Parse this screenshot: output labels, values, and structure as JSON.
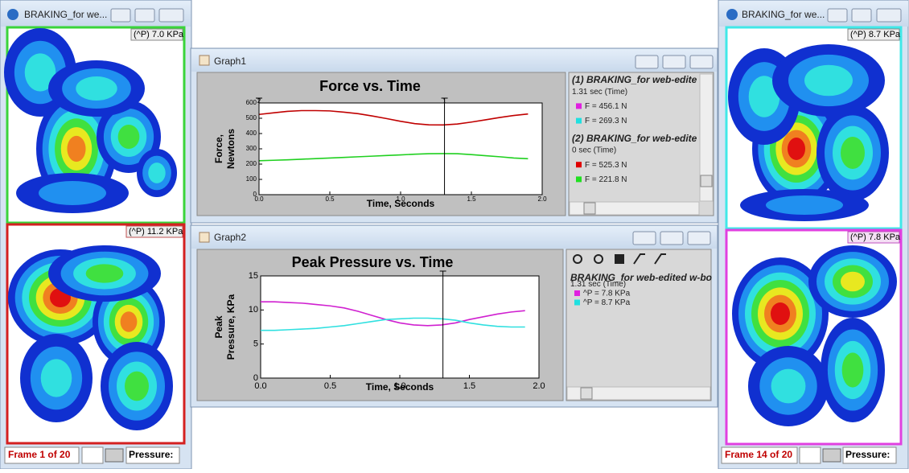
{
  "left_window": {
    "title": "BRAKING_for we...",
    "top_label": "(^P) 7.0 KPa",
    "bottom_label": "(^P) 11.2 KPa",
    "frame": "Frame 1 of 20",
    "pressure": "Pressure:"
  },
  "right_window": {
    "title": "BRAKING_for we...",
    "top_label": "(^P) 8.7 KPa",
    "bottom_label": "(^P) 7.8 KPa",
    "frame": "Frame 14 of 20",
    "pressure": "Pressure:"
  },
  "graph1_window": {
    "title": "Graph1",
    "readout": [
      {
        "text": "(1) BRAKING_for web-edite",
        "style": "head"
      },
      {
        "text": "1.31 sec (Time)",
        "style": "plain"
      },
      {
        "text": "F = 456.1 N",
        "style": "plain",
        "color": "#e020e0"
      },
      {
        "text": "F = 269.3 N",
        "style": "plain",
        "color": "#20e0e0"
      },
      {
        "text": "(2) BRAKING_for web-edite",
        "style": "head"
      },
      {
        "text": "0 sec (Time)",
        "style": "plain"
      },
      {
        "text": "F = 525.3 N",
        "style": "plain",
        "color": "#e00000"
      },
      {
        "text": "F = 221.8 N",
        "style": "plain",
        "color": "#20e020"
      }
    ]
  },
  "graph2_window": {
    "title": "Graph2",
    "readout": [
      {
        "text": "BRAKING_for web-edited w-bo",
        "style": "head"
      },
      {
        "text": "1.31 sec (Time)",
        "style": "plain"
      },
      {
        "text": "^P = 7.8 KPa",
        "style": "plain",
        "color": "#e020e0"
      },
      {
        "text": "^P = 8.7 KPa",
        "style": "plain",
        "color": "#20e0e0"
      }
    ]
  },
  "chart_data": [
    {
      "type": "line",
      "title": "Force vs. Time",
      "xlabel": "Time, Seconds",
      "ylabel": [
        "Force,",
        "Newtons"
      ],
      "x": [
        0,
        0.1,
        0.2,
        0.3,
        0.4,
        0.5,
        0.6,
        0.7,
        0.8,
        0.9,
        1.0,
        1.1,
        1.2,
        1.3,
        1.4,
        1.5,
        1.6,
        1.7,
        1.8,
        1.9
      ],
      "series": [
        {
          "color": "#c00000",
          "values": [
            525,
            535,
            545,
            550,
            550,
            548,
            540,
            530,
            515,
            498,
            480,
            465,
            457,
            456,
            462,
            475,
            490,
            505,
            518,
            528
          ]
        },
        {
          "color": "#20d020",
          "values": [
            222,
            225,
            228,
            232,
            236,
            240,
            244,
            248,
            252,
            256,
            260,
            265,
            268,
            269,
            268,
            262,
            255,
            248,
            240,
            235
          ]
        }
      ],
      "cursors": [
        {
          "x": 1.31,
          "label": "1"
        },
        {
          "x": 0,
          "label": "2"
        }
      ],
      "xlim": [
        0,
        2
      ],
      "ylim": [
        0,
        600
      ],
      "xticks": [
        {
          "value": 0,
          "label": "0.0"
        },
        {
          "value": 0.5,
          "label": "0.5"
        },
        {
          "value": 1,
          "label": "1.0"
        },
        {
          "value": 1.5,
          "label": "1.5"
        },
        {
          "value": 2,
          "label": "2.0"
        }
      ],
      "yticks": [
        0,
        100,
        200,
        300,
        400,
        500,
        600
      ],
      "small_ticks": true
    },
    {
      "type": "line",
      "title": "Peak Pressure vs. Time",
      "xlabel": "Time, Seconds",
      "ylabel": [
        "Peak",
        "Pressure, KPa"
      ],
      "x": [
        0,
        0.1,
        0.2,
        0.3,
        0.4,
        0.5,
        0.6,
        0.7,
        0.8,
        0.9,
        1.0,
        1.1,
        1.2,
        1.3,
        1.4,
        1.5,
        1.6,
        1.7,
        1.8,
        1.9
      ],
      "series": [
        {
          "color": "#d020d0",
          "values": [
            11.2,
            11.2,
            11.1,
            11,
            10.8,
            10.6,
            10.3,
            9.8,
            9.2,
            8.6,
            8.1,
            7.8,
            7.7,
            7.8,
            8.1,
            8.6,
            9.0,
            9.4,
            9.7,
            9.9
          ]
        },
        {
          "color": "#30e0e0",
          "values": [
            7.0,
            7.0,
            7.1,
            7.2,
            7.3,
            7.5,
            7.7,
            8.0,
            8.3,
            8.6,
            8.7,
            8.8,
            8.8,
            8.7,
            8.5,
            8.1,
            7.8,
            7.6,
            7.5,
            7.5
          ]
        }
      ],
      "cursors": [
        {
          "x": 1.31
        }
      ],
      "xlim": [
        0,
        2
      ],
      "ylim": [
        0,
        15
      ],
      "xticks": [
        {
          "value": 0,
          "label": "0.0"
        },
        {
          "value": 0.5,
          "label": "0.5"
        },
        {
          "value": 1,
          "label": "1.0"
        },
        {
          "value": 1.5,
          "label": "1.5"
        },
        {
          "value": 2,
          "label": "2.0"
        }
      ],
      "yticks": [
        0,
        5,
        10,
        15
      ],
      "small_ticks": false
    }
  ]
}
